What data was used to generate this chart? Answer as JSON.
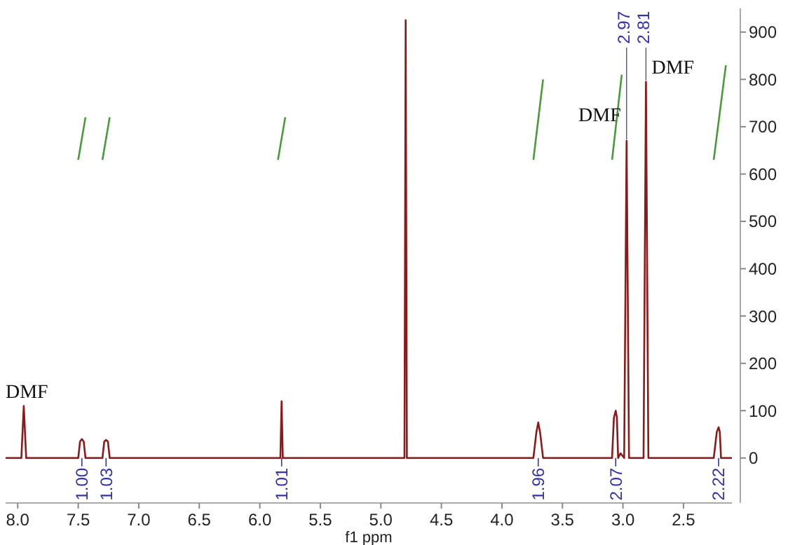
{
  "chart_data": {
    "type": "line",
    "xlabel": "f1 ppm",
    "xlim": [
      8.1,
      2.1
    ],
    "ylim": [
      -95,
      950
    ],
    "xticks": [
      {
        "value": 8.0,
        "label": "8.0"
      },
      7.5,
      {
        "value": 7.0,
        "label": "7.0"
      },
      6.5,
      {
        "value": 6.0,
        "label": "6.0"
      },
      5.5,
      {
        "value": 5.0,
        "label": "5.0"
      },
      4.5,
      {
        "value": 4.0,
        "label": "4.0"
      },
      3.5,
      {
        "value": 3.0,
        "label": "3.0"
      },
      2.5
    ],
    "yticks": [
      0,
      100,
      200,
      300,
      400,
      500,
      600,
      700,
      800,
      900
    ],
    "grid": false,
    "marker": "none",
    "line_style": "solid",
    "series": [
      {
        "color": "#8b1a1a",
        "x": [
          8.1,
          7.97,
          7.95,
          7.93,
          7.5,
          7.485,
          7.47,
          7.455,
          7.44,
          7.3,
          7.285,
          7.27,
          7.255,
          7.24,
          5.85,
          5.83,
          5.82,
          5.81,
          4.82,
          4.805,
          4.795,
          4.785,
          3.74,
          3.715,
          3.7,
          3.685,
          3.66,
          3.09,
          3.075,
          3.06,
          3.05,
          3.04,
          3.02,
          2.99,
          2.97,
          2.95,
          2.83,
          2.81,
          2.79,
          2.25,
          2.225,
          2.21,
          2.2,
          2.19,
          2.16,
          2.1
        ],
        "values": [
          0,
          0,
          110,
          0,
          0,
          35,
          40,
          35,
          0,
          0,
          35,
          38,
          35,
          0,
          0,
          0,
          120,
          0,
          0,
          0,
          925,
          0,
          0,
          55,
          75,
          55,
          0,
          0,
          85,
          100,
          85,
          0,
          10,
          0,
          670,
          0,
          0,
          795,
          0,
          0,
          55,
          65,
          55,
          0,
          0,
          0
        ]
      },
      {
        "color": "#4a9a3a",
        "x": [
          7.5,
          7.47,
          7.44
        ],
        "values": [
          630,
          675,
          720
        ]
      },
      {
        "color": "#4a9a3a",
        "x": [
          7.3,
          7.27,
          7.24
        ],
        "values": [
          630,
          675,
          720
        ]
      },
      {
        "color": "#4a9a3a",
        "x": [
          5.85,
          5.82,
          5.79
        ],
        "values": [
          630,
          675,
          720
        ]
      },
      {
        "color": "#4a9a3a",
        "x": [
          3.74,
          3.7,
          3.66
        ],
        "values": [
          630,
          715,
          800
        ]
      },
      {
        "color": "#4a9a3a",
        "x": [
          3.09,
          3.05,
          3.01
        ],
        "values": [
          630,
          720,
          810
        ]
      },
      {
        "color": "#4a9a3a",
        "x": [
          2.25,
          2.2,
          2.15
        ],
        "values": [
          630,
          730,
          830
        ]
      }
    ],
    "annotations": [
      {
        "text": "DMF",
        "x": 7.95,
        "y": 110
      },
      {
        "text": "DMF",
        "x": 2.97,
        "y": 670
      },
      {
        "text": "DMF",
        "x": 2.81,
        "y": 795
      },
      {
        "text": "2.97",
        "x": 2.97,
        "y": 670
      },
      {
        "text": "2.81",
        "x": 2.81,
        "y": 795
      },
      {
        "text": "1.00",
        "x": 7.47,
        "y": 0
      },
      {
        "text": "1.03",
        "x": 7.27,
        "y": 0
      },
      {
        "text": "1.01",
        "x": 5.82,
        "y": 0
      },
      {
        "text": "1.96",
        "x": 3.7,
        "y": 0
      },
      {
        "text": "2.07",
        "x": 3.06,
        "y": 0
      },
      {
        "text": "2.22",
        "x": 2.21,
        "y": 0
      }
    ]
  }
}
